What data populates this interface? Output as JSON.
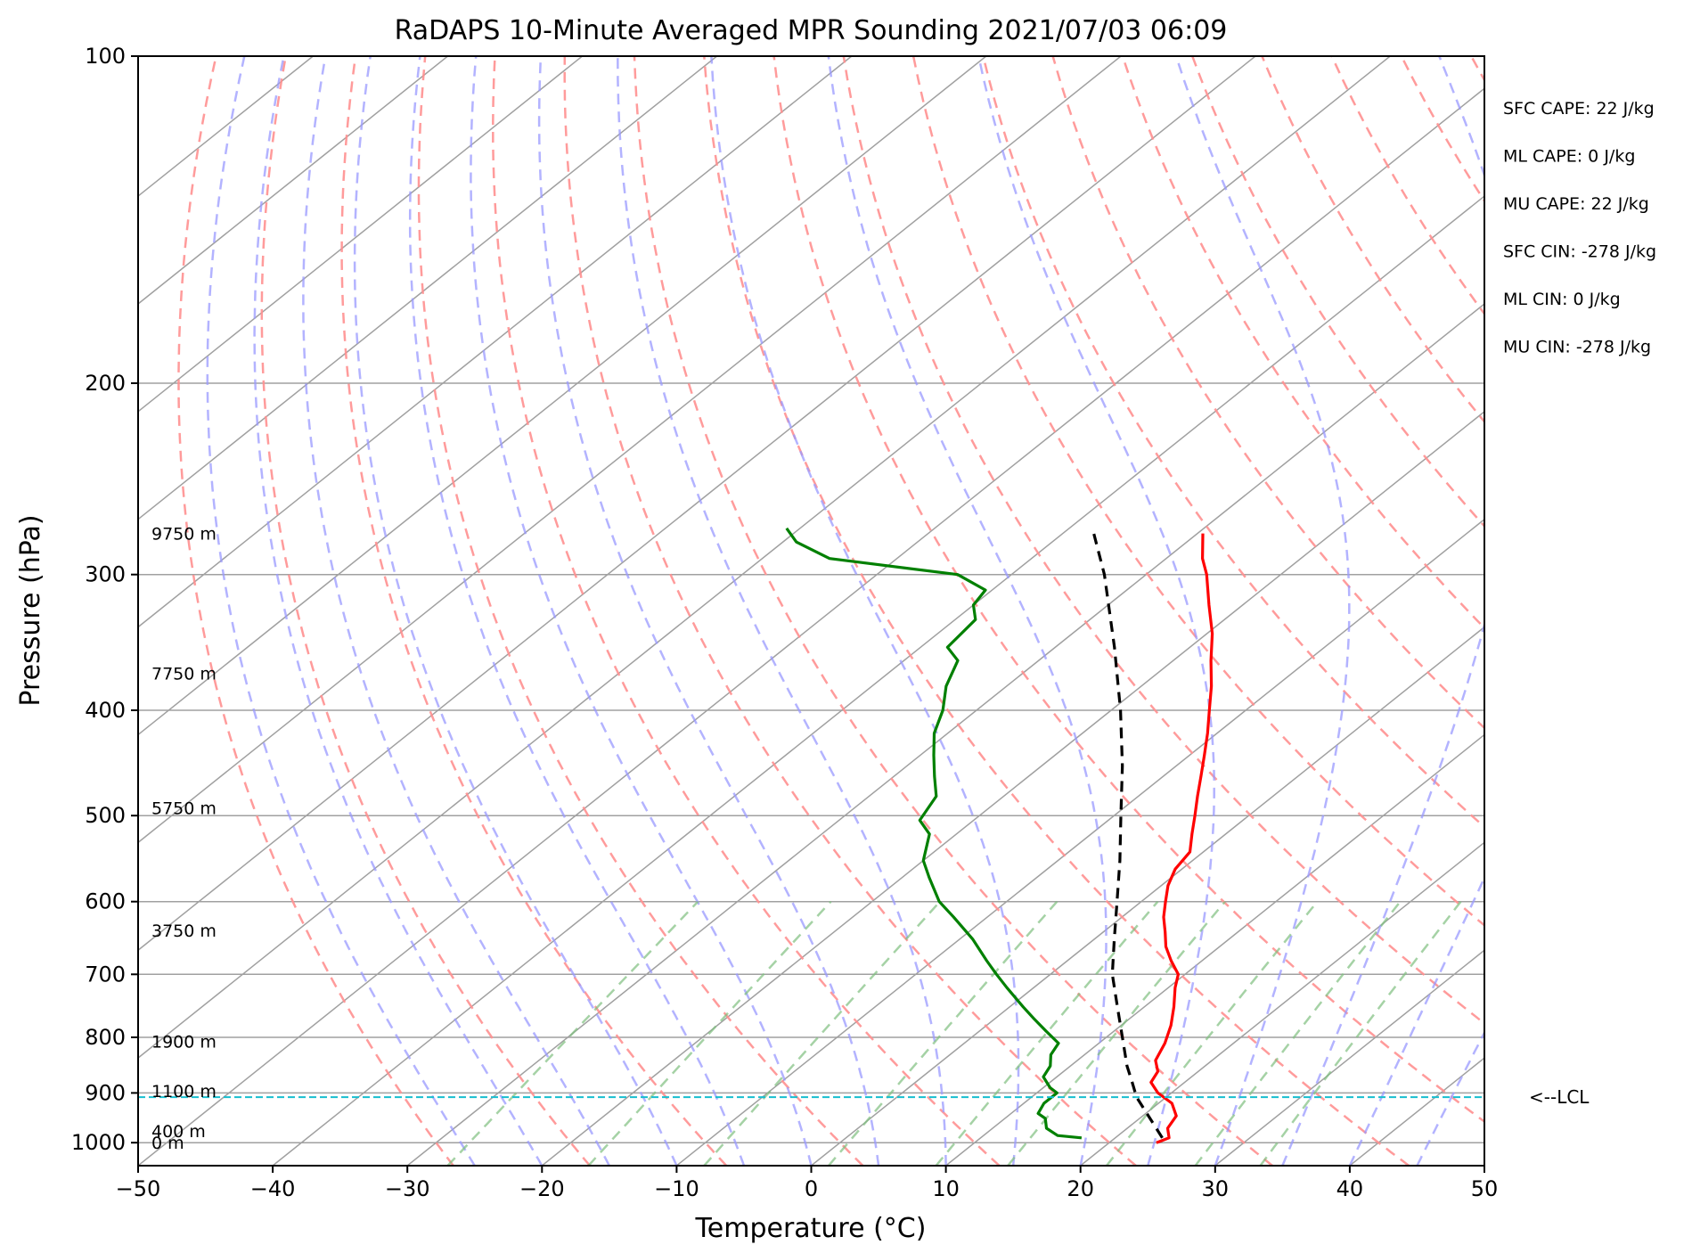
{
  "chart_data": {
    "type": "skew-t",
    "title": "RaDAPS 10-Minute Averaged MPR Sounding 2021/07/03 06:09",
    "xlabel": "Temperature (°C)",
    "ylabel": "Pressure (hPa)",
    "xlim": [
      -50,
      50
    ],
    "ylim": [
      1050,
      100
    ],
    "y_scale": "log",
    "x_ticks": [
      -50,
      -40,
      -30,
      -20,
      -10,
      0,
      10,
      20,
      30,
      40,
      50
    ],
    "x_tick_labels": [
      "−50",
      "−40",
      "−30",
      "−20",
      "−10",
      "0",
      "10",
      "20",
      "30",
      "40",
      "50"
    ],
    "y_ticks": [
      100,
      200,
      300,
      400,
      500,
      600,
      700,
      800,
      900,
      1000
    ],
    "y_tick_labels": [
      "100",
      "200",
      "300",
      "400",
      "500",
      "600",
      "700",
      "800",
      "900",
      "1000"
    ],
    "grid": true,
    "height_labels": [
      {
        "text": "9750 m",
        "p": 275
      },
      {
        "text": "7750 m",
        "p": 370
      },
      {
        "text": "5750 m",
        "p": 492
      },
      {
        "text": "3750 m",
        "p": 638
      },
      {
        "text": "1900 m",
        "p": 807
      },
      {
        "text": "1100 m",
        "p": 896
      },
      {
        "text": "400 m",
        "p": 975
      },
      {
        "text": "0 m",
        "p": 1000
      }
    ],
    "indices": [
      {
        "label": "SFC CAPE: 22 J/kg"
      },
      {
        "label": "ML CAPE: 0 J/kg"
      },
      {
        "label": "MU CAPE: 22 J/kg"
      },
      {
        "label": "SFC CIN: -278 J/kg"
      },
      {
        "label": "ML CIN: 0 J/kg"
      },
      {
        "label": "MU CIN: -278 J/kg"
      }
    ],
    "lcl": {
      "p": 908,
      "label": "<--LCL",
      "color": "#17becf"
    },
    "series": [
      {
        "role": "temperature",
        "color": "#ff0000",
        "points": [
          [
            1000,
            23.5
          ],
          [
            990,
            24.0
          ],
          [
            970,
            23.0
          ],
          [
            945,
            22.5
          ],
          [
            920,
            21.0
          ],
          [
            900,
            19.0
          ],
          [
            880,
            17.5
          ],
          [
            860,
            17.0
          ],
          [
            840,
            15.8
          ],
          [
            810,
            14.9
          ],
          [
            780,
            13.7
          ],
          [
            750,
            12.2
          ],
          [
            720,
            10.5
          ],
          [
            700,
            9.5
          ],
          [
            680,
            7.7
          ],
          [
            660,
            6.0
          ],
          [
            640,
            4.6
          ],
          [
            620,
            3.1
          ],
          [
            600,
            1.8
          ],
          [
            580,
            0.5
          ],
          [
            560,
            -0.5
          ],
          [
            540,
            -1.0
          ],
          [
            520,
            -2.5
          ],
          [
            500,
            -4.0
          ],
          [
            480,
            -5.6
          ],
          [
            460,
            -7.2
          ],
          [
            440,
            -8.9
          ],
          [
            420,
            -10.7
          ],
          [
            400,
            -12.7
          ],
          [
            380,
            -14.8
          ],
          [
            360,
            -17.2
          ],
          [
            340,
            -19.6
          ],
          [
            320,
            -22.5
          ],
          [
            300,
            -25.5
          ],
          [
            290,
            -27.3
          ],
          [
            275,
            -29.6
          ]
        ]
      },
      {
        "role": "dewpoint",
        "color": "#008000",
        "points": [
          [
            990,
            17.5
          ],
          [
            985,
            15.5
          ],
          [
            970,
            14.0
          ],
          [
            950,
            13.0
          ],
          [
            940,
            12.0
          ],
          [
            920,
            11.5
          ],
          [
            900,
            11.5
          ],
          [
            890,
            10.5
          ],
          [
            870,
            9.0
          ],
          [
            850,
            8.5
          ],
          [
            830,
            7.5
          ],
          [
            810,
            7.0
          ],
          [
            790,
            5.0
          ],
          [
            770,
            3.0
          ],
          [
            750,
            1.0
          ],
          [
            720,
            -2.0
          ],
          [
            700,
            -4.0
          ],
          [
            680,
            -6.0
          ],
          [
            650,
            -9.0
          ],
          [
            620,
            -12.5
          ],
          [
            600,
            -15.0
          ],
          [
            570,
            -18.0
          ],
          [
            550,
            -20.0
          ],
          [
            520,
            -22.0
          ],
          [
            505,
            -24.0
          ],
          [
            480,
            -25.0
          ],
          [
            460,
            -27.0
          ],
          [
            440,
            -29.0
          ],
          [
            420,
            -31.0
          ],
          [
            400,
            -32.5
          ],
          [
            380,
            -34.5
          ],
          [
            360,
            -36.0
          ],
          [
            350,
            -38.0
          ],
          [
            330,
            -38.5
          ],
          [
            320,
            -40.0
          ],
          [
            310,
            -40.5
          ],
          [
            300,
            -44.0
          ],
          [
            290,
            -55.0
          ],
          [
            280,
            -59.0
          ],
          [
            272,
            -61.0
          ]
        ]
      },
      {
        "role": "parcel",
        "color": "#000000",
        "points": [
          [
            990,
            23.5
          ],
          [
            908,
            17.8
          ],
          [
            880,
            16.1
          ],
          [
            850,
            14.2
          ],
          [
            800,
            11.2
          ],
          [
            750,
            8.0
          ],
          [
            700,
            4.6
          ],
          [
            650,
            1.5
          ],
          [
            600,
            -1.8
          ],
          [
            550,
            -5.4
          ],
          [
            500,
            -9.5
          ],
          [
            450,
            -14.0
          ],
          [
            400,
            -19.3
          ],
          [
            350,
            -25.6
          ],
          [
            300,
            -33.1
          ],
          [
            275,
            -37.7
          ]
        ]
      }
    ],
    "background": {
      "isotherm_color": "#a0a0a0",
      "dry_adiabat_color": "#ff9090",
      "moist_adiabat_color": "#9a9aff",
      "mixing_ratio_color": "#7fbf7f"
    }
  }
}
